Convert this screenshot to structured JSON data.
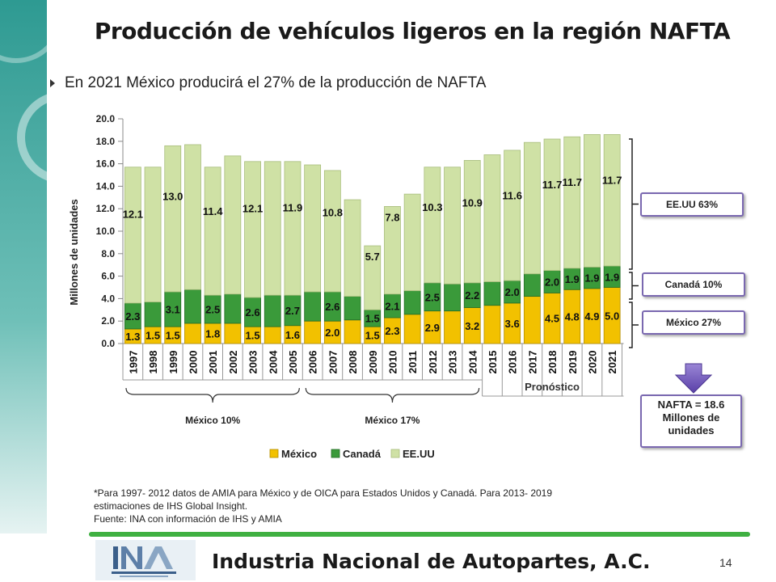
{
  "title": "Producción de vehículos ligeros en la región NAFTA",
  "bullet": "En 2021 México producirá el 27% de la producción  de NAFTA",
  "colors": {
    "mexico": "#f2c100",
    "canada": "#3a9a3a",
    "eeuu": "#cfe1a5",
    "box_border": "#7a68b0",
    "accent_green": "#3fb041"
  },
  "chart_data": {
    "type": "bar",
    "stacked": true,
    "ylabel": "Millones de unidades",
    "ylim": [
      0,
      20
    ],
    "yticks": [
      "0.0",
      "2.0",
      "4.0",
      "6.0",
      "8.0",
      "10.0",
      "12.0",
      "14.0",
      "16.0",
      "18.0",
      "20.0"
    ],
    "categories": [
      "1997",
      "1998",
      "1999",
      "2000",
      "2001",
      "2002",
      "2003",
      "2004",
      "2005",
      "2006",
      "2007",
      "2008",
      "2009",
      "2010",
      "2011",
      "2012",
      "2013",
      "2014",
      "2015",
      "2016",
      "2017",
      "2018",
      "2019",
      "2020",
      "2021"
    ],
    "series": [
      {
        "name": "México",
        "values": [
          1.3,
          1.5,
          1.5,
          1.8,
          1.8,
          1.8,
          1.5,
          1.5,
          1.6,
          2.0,
          2.0,
          2.1,
          1.5,
          2.3,
          2.6,
          2.9,
          2.9,
          3.2,
          3.4,
          3.6,
          4.2,
          4.5,
          4.8,
          4.9,
          5.0
        ],
        "labels": [
          "1.3",
          "1.5",
          "1.5",
          "",
          "1.8",
          "",
          "1.5",
          "",
          "1.6",
          "",
          "2.0",
          "",
          "1.5",
          "2.3",
          "",
          "2.9",
          "",
          "3.2",
          "",
          "3.6",
          "",
          "4.5",
          "4.8",
          "4.9",
          "5.0"
        ]
      },
      {
        "name": "Canadá",
        "values": [
          2.3,
          2.2,
          3.1,
          3.0,
          2.5,
          2.6,
          2.6,
          2.8,
          2.7,
          2.6,
          2.6,
          2.1,
          1.5,
          2.1,
          2.1,
          2.5,
          2.4,
          2.2,
          2.1,
          2.0,
          2.0,
          2.0,
          1.9,
          1.9,
          1.9
        ],
        "labels": [
          "2.3",
          "",
          "3.1",
          "",
          "2.5",
          "",
          "2.6",
          "",
          "2.7",
          "",
          "2.6",
          "",
          "1.5",
          "2.1",
          "",
          "2.5",
          "",
          "2.2",
          "",
          "2.0",
          "",
          "2.0",
          "1.9",
          "1.9",
          "1.9"
        ]
      },
      {
        "name": "EE.UU",
        "values": [
          12.1,
          12.0,
          13.0,
          12.9,
          11.4,
          12.3,
          12.1,
          11.9,
          11.9,
          11.3,
          10.8,
          8.6,
          5.7,
          7.8,
          8.6,
          10.3,
          10.4,
          10.9,
          11.3,
          11.6,
          11.7,
          11.7,
          11.7,
          11.8,
          11.7
        ],
        "labels": [
          "12.1",
          "",
          "13.0",
          "",
          "11.4",
          "",
          "12.1",
          "",
          "11.9",
          "",
          "10.8",
          "",
          "5.7",
          "7.8",
          "",
          "10.3",
          "",
          "10.9",
          "",
          "11.6",
          "",
          "11.7",
          "11.7",
          "",
          "11.7"
        ]
      }
    ],
    "forecast_label": "Pronóstico",
    "brackets": [
      "México 10%",
      "México 17%"
    ],
    "share_boxes": [
      "EE.UU 63%",
      "Canadá 10%",
      "México 27%"
    ],
    "nafta_box": [
      "NAFTA = 18.6",
      "Millones de",
      "unidades"
    ]
  },
  "footnote": [
    "*Para 1997- 2012 datos de AMIA para México y de OICA para Estados Unidos y Canadá. Para 2013- 2019",
    "estimaciones de IHS Global Insight.",
    "Fuente: INA con información de IHS y AMIA"
  ],
  "footer": {
    "title": "Industria Nacional de  Autopartes, A.C.",
    "page": "14"
  }
}
